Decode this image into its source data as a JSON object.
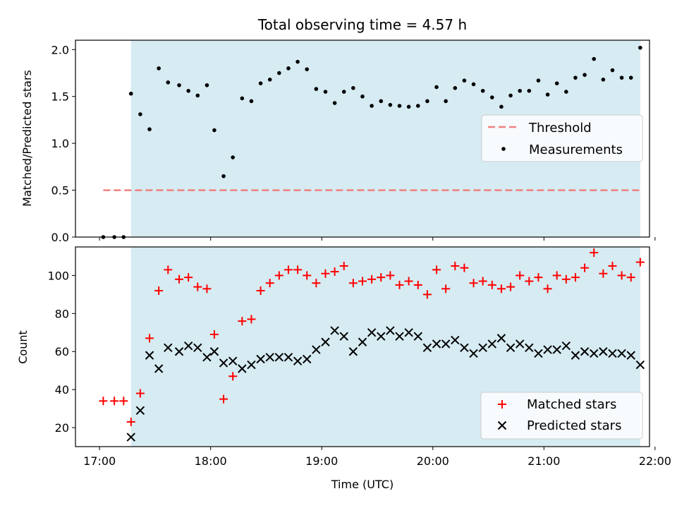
{
  "chart_data": [
    {
      "type": "scatter",
      "title": "Total observing time = 4.57 h",
      "ylabel": "Matched/Predicted stars",
      "xlabel": "",
      "ylim": [
        0,
        2.1
      ],
      "xlim": [
        "16:47",
        "21:57"
      ],
      "yticks": [
        "0.0",
        "0.5",
        "1.0",
        "1.5",
        "2.0"
      ],
      "observing_window": [
        "17:17",
        "21:52"
      ],
      "grid": false,
      "legend_position": "center-right",
      "series": [
        {
          "name": "Threshold",
          "style": "dashed-line",
          "color": "#f08080",
          "x": [
            "17:02",
            "21:52"
          ],
          "y": [
            0.5,
            0.5
          ]
        },
        {
          "name": "Measurements",
          "style": "dots",
          "color": "#000000",
          "x": [
            "17:02",
            "17:08",
            "17:13",
            "17:17",
            "17:22",
            "17:27",
            "17:32",
            "17:37",
            "17:43",
            "17:48",
            "17:53",
            "17:58",
            "18:02",
            "18:07",
            "18:12",
            "18:17",
            "18:22",
            "18:27",
            "18:32",
            "18:37",
            "18:42",
            "18:47",
            "18:52",
            "18:57",
            "19:02",
            "19:07",
            "19:12",
            "19:17",
            "19:22",
            "19:27",
            "19:32",
            "19:37",
            "19:42",
            "19:47",
            "19:52",
            "19:57",
            "20:02",
            "20:07",
            "20:12",
            "20:17",
            "20:22",
            "20:27",
            "20:32",
            "20:37",
            "20:42",
            "20:47",
            "20:52",
            "20:57",
            "21:02",
            "21:07",
            "21:12",
            "21:17",
            "21:22",
            "21:27",
            "21:32",
            "21:37",
            "21:42",
            "21:47",
            "21:52"
          ],
          "y": [
            0.0,
            0.0,
            0.0,
            1.53,
            1.31,
            1.15,
            1.8,
            1.65,
            1.62,
            1.56,
            1.51,
            1.62,
            1.14,
            0.65,
            0.85,
            1.48,
            1.45,
            1.64,
            1.68,
            1.75,
            1.8,
            1.87,
            1.79,
            1.58,
            1.55,
            1.43,
            1.55,
            1.59,
            1.5,
            1.4,
            1.45,
            1.41,
            1.4,
            1.39,
            1.4,
            1.45,
            1.6,
            1.45,
            1.59,
            1.67,
            1.63,
            1.56,
            1.49,
            1.39,
            1.51,
            1.56,
            1.56,
            1.67,
            1.52,
            1.64,
            1.55,
            1.7,
            1.73,
            1.9,
            1.68,
            1.78,
            1.7,
            1.7,
            2.02
          ]
        }
      ]
    },
    {
      "type": "scatter",
      "title": "",
      "ylabel": "Count",
      "xlabel": "Time (UTC)",
      "ylim": [
        10,
        115
      ],
      "xlim": [
        "16:47",
        "21:57"
      ],
      "xticks": [
        "17:00",
        "18:00",
        "19:00",
        "20:00",
        "21:00",
        "22:00"
      ],
      "yticks": [
        "20",
        "40",
        "60",
        "80",
        "100"
      ],
      "observing_window": [
        "17:17",
        "21:52"
      ],
      "grid": false,
      "legend_position": "bottom-right",
      "series": [
        {
          "name": "Matched stars",
          "marker": "plus",
          "color": "#ff0000",
          "x": [
            "17:02",
            "17:08",
            "17:13",
            "17:17",
            "17:22",
            "17:27",
            "17:32",
            "17:37",
            "17:43",
            "17:48",
            "17:53",
            "17:58",
            "18:02",
            "18:07",
            "18:12",
            "18:17",
            "18:22",
            "18:27",
            "18:32",
            "18:37",
            "18:42",
            "18:47",
            "18:52",
            "18:57",
            "19:02",
            "19:07",
            "19:12",
            "19:17",
            "19:22",
            "19:27",
            "19:32",
            "19:37",
            "19:42",
            "19:47",
            "19:52",
            "19:57",
            "20:02",
            "20:07",
            "20:12",
            "20:17",
            "20:22",
            "20:27",
            "20:32",
            "20:37",
            "20:42",
            "20:47",
            "20:52",
            "20:57",
            "21:02",
            "21:07",
            "21:12",
            "21:17",
            "21:22",
            "21:27",
            "21:32",
            "21:37",
            "21:42",
            "21:47",
            "21:52"
          ],
          "y": [
            34,
            34,
            34,
            23,
            38,
            67,
            92,
            103,
            98,
            99,
            94,
            93,
            69,
            35,
            47,
            76,
            77,
            92,
            96,
            100,
            103,
            103,
            100,
            96,
            101,
            102,
            105,
            96,
            97,
            98,
            99,
            100,
            95,
            97,
            95,
            90,
            103,
            93,
            105,
            104,
            96,
            97,
            95,
            93,
            94,
            100,
            97,
            99,
            93,
            100,
            98,
            99,
            104,
            112,
            101,
            105,
            100,
            99,
            107
          ]
        },
        {
          "name": "Predicted stars",
          "marker": "x",
          "color": "#000000",
          "x": [
            "17:17",
            "17:22",
            "17:27",
            "17:32",
            "17:37",
            "17:43",
            "17:48",
            "17:53",
            "17:58",
            "18:02",
            "18:07",
            "18:12",
            "18:17",
            "18:22",
            "18:27",
            "18:32",
            "18:37",
            "18:42",
            "18:47",
            "18:52",
            "18:57",
            "19:02",
            "19:07",
            "19:12",
            "19:17",
            "19:22",
            "19:27",
            "19:32",
            "19:37",
            "19:42",
            "19:47",
            "19:52",
            "19:57",
            "20:02",
            "20:07",
            "20:12",
            "20:17",
            "20:22",
            "20:27",
            "20:32",
            "20:37",
            "20:42",
            "20:47",
            "20:52",
            "20:57",
            "21:02",
            "21:07",
            "21:12",
            "21:17",
            "21:22",
            "21:27",
            "21:32",
            "21:37",
            "21:42",
            "21:47",
            "21:52"
          ],
          "y": [
            15,
            29,
            58,
            51,
            62,
            60,
            63,
            62,
            57,
            60,
            54,
            55,
            51,
            53,
            56,
            57,
            57,
            57,
            55,
            56,
            61,
            65,
            71,
            68,
            60,
            65,
            70,
            68,
            71,
            68,
            70,
            68,
            62,
            64,
            64,
            66,
            62,
            59,
            62,
            64,
            67,
            62,
            64,
            62,
            59,
            61,
            61,
            63,
            58,
            60,
            59,
            60,
            59,
            59,
            58,
            53
          ]
        }
      ]
    }
  ]
}
